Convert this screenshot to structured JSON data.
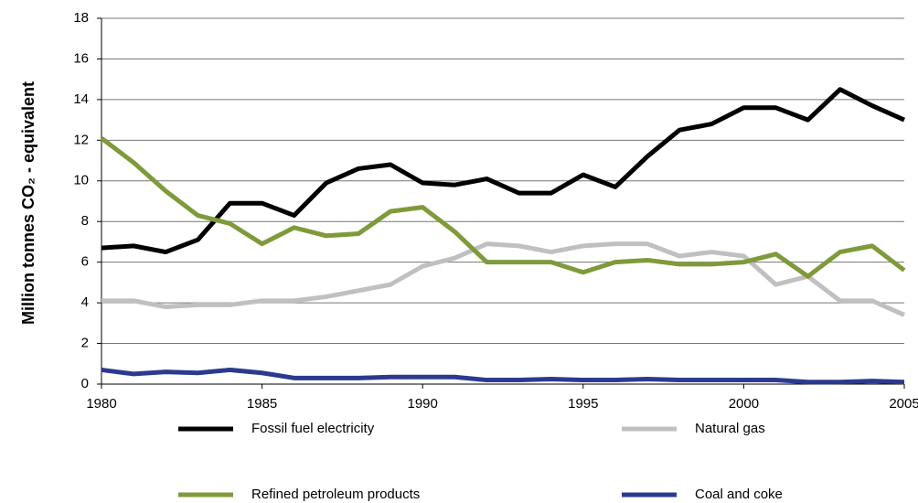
{
  "chart_data": {
    "type": "line",
    "y_label": "Million tonnes CO₂ - equivalent",
    "x": [
      1980,
      1981,
      1982,
      1983,
      1984,
      1985,
      1986,
      1987,
      1988,
      1989,
      1990,
      1991,
      1992,
      1993,
      1994,
      1995,
      1996,
      1997,
      1998,
      1999,
      2000,
      2001,
      2002,
      2003,
      2004,
      2005
    ],
    "series": [
      {
        "name": "Fossil fuel electricity",
        "color": "#000000",
        "values": [
          6.7,
          6.8,
          6.5,
          7.1,
          8.9,
          8.9,
          8.3,
          9.9,
          10.6,
          10.8,
          9.9,
          9.8,
          10.1,
          9.4,
          9.4,
          10.3,
          9.7,
          11.2,
          12.5,
          12.8,
          13.6,
          13.6,
          13.0,
          14.5,
          13.7,
          13.0
        ]
      },
      {
        "name": "Natural gas",
        "color": "#c0c0c0",
        "values": [
          4.1,
          4.1,
          3.8,
          3.9,
          3.9,
          4.1,
          4.1,
          4.3,
          4.6,
          4.9,
          5.8,
          6.2,
          6.9,
          6.8,
          6.5,
          6.8,
          6.9,
          6.9,
          6.3,
          6.5,
          6.3,
          4.9,
          5.3,
          4.1,
          4.1,
          3.4
        ]
      },
      {
        "name": "Refined petroleum products",
        "color": "#7f9a3a",
        "values": [
          12.1,
          10.9,
          9.5,
          8.3,
          7.9,
          6.9,
          7.7,
          7.3,
          7.4,
          8.5,
          8.7,
          7.5,
          6.0,
          6.0,
          6.0,
          5.5,
          6.0,
          6.1,
          5.9,
          5.9,
          6.0,
          6.4,
          5.3,
          6.5,
          6.8,
          5.6
        ]
      },
      {
        "name": "Coal and coke",
        "color": "#2b3a8f",
        "values": [
          0.7,
          0.5,
          0.6,
          0.55,
          0.7,
          0.55,
          0.3,
          0.3,
          0.3,
          0.35,
          0.35,
          0.35,
          0.2,
          0.2,
          0.25,
          0.2,
          0.2,
          0.25,
          0.2,
          0.2,
          0.2,
          0.2,
          0.1,
          0.1,
          0.15,
          0.1
        ]
      }
    ],
    "xlim": [
      1980,
      2005
    ],
    "xticks": [
      1980,
      1985,
      1990,
      1995,
      2000,
      2005
    ],
    "ylim": [
      0,
      18
    ],
    "yticks": [
      0,
      2,
      4,
      6,
      8,
      10,
      12,
      14,
      16,
      18
    ],
    "grid": true
  }
}
